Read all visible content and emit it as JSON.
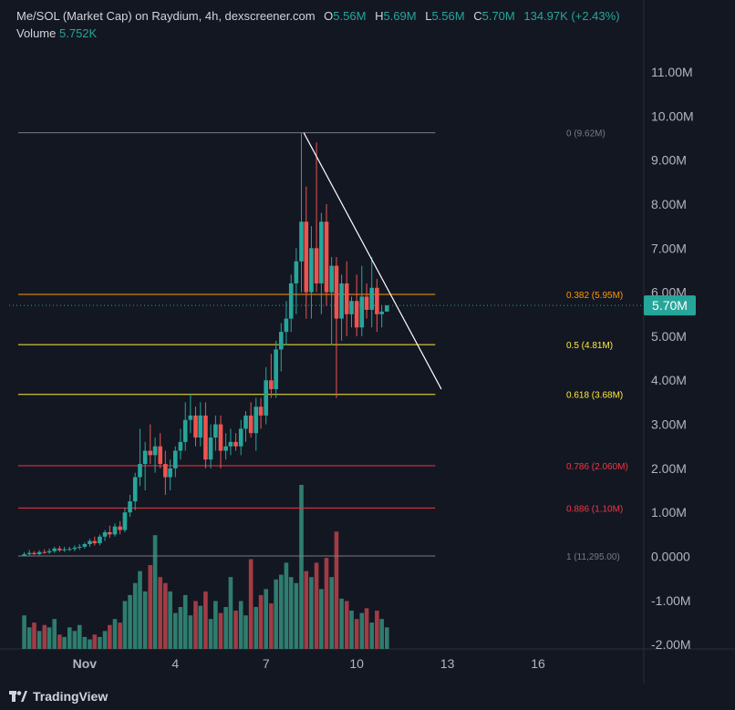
{
  "header": {
    "title": "Me/SOL (Market Cap) on Raydium, 4h, dexscreener.com",
    "o_label": "O",
    "o_value": "5.56M",
    "h_label": "H",
    "h_value": "5.69M",
    "l_label": "L",
    "l_value": "5.56M",
    "c_label": "C",
    "c_value": "5.70M",
    "change": "134.97K (+2.43%)"
  },
  "volume": {
    "label": "Volume",
    "value": "5.752K"
  },
  "price_badge": "5.70M",
  "branding": "TradingView",
  "colors": {
    "up": "#26a69a",
    "down": "#ef5350",
    "up_volume": "#2e7d6e",
    "down_volume": "#a33b45",
    "background": "#131722",
    "fib_0": "#787b86",
    "fib_0382": "#ff9800",
    "fib_05": "#ffeb3b",
    "fib_0618": "#ffeb3b",
    "fib_0786": "#f23645",
    "fib_0886": "#f23645",
    "fib_1": "#787b86",
    "trendline": "#ffffff"
  },
  "chart_data": {
    "type": "candlestick",
    "y_axis_ticks": [
      "11.00M",
      "10.00M",
      "9.00M",
      "8.00M",
      "7.00M",
      "6.00M",
      "5.00M",
      "4.00M",
      "3.00M",
      "2.00M",
      "1.00M",
      "0.0000",
      "-1.00M",
      "-2.00M"
    ],
    "ylim": [
      -2.1,
      11.6
    ],
    "x_axis_ticks": [
      {
        "label": "Nov",
        "x": 1
      },
      {
        "label": "4",
        "x": 4
      },
      {
        "label": "7",
        "x": 7
      },
      {
        "label": "10",
        "x": 10
      },
      {
        "label": "13",
        "x": 13
      },
      {
        "label": "16",
        "x": 16
      }
    ],
    "xlim": [
      -1.5,
      19.5
    ],
    "last_price": 5.7,
    "fib_levels": [
      {
        "level": "0",
        "label": "0 (9.62M)",
        "value": 9.62
      },
      {
        "level": "0.382",
        "label": "0.382 (5.95M)",
        "value": 5.95
      },
      {
        "level": "0.5",
        "label": "0.5 (4.81M)",
        "value": 4.81
      },
      {
        "level": "0.618",
        "label": "0.618 (3.68M)",
        "value": 3.68
      },
      {
        "level": "0.786",
        "label": "0.786 (2.060M)",
        "value": 2.06
      },
      {
        "level": "0.886",
        "label": "0.886 (1.10M)",
        "value": 1.1
      },
      {
        "level": "1",
        "label": "1 (11,295.00)",
        "value": 0.011
      }
    ],
    "fib_x_range": [
      -1.2,
      12.6
    ],
    "trendline": {
      "x1": 8.25,
      "y1": 9.62,
      "x2": 12.8,
      "y2": 3.8
    },
    "volume_scale_max": 1.37,
    "candles": [
      {
        "x": -1.0,
        "o": 0.02,
        "h": 0.1,
        "l": 0.01,
        "c": 0.05
      },
      {
        "x": -0.83,
        "o": 0.05,
        "h": 0.15,
        "l": 0.02,
        "c": 0.08
      },
      {
        "x": -0.67,
        "o": 0.08,
        "h": 0.12,
        "l": 0.04,
        "c": 0.05
      },
      {
        "x": -0.5,
        "o": 0.05,
        "h": 0.14,
        "l": 0.03,
        "c": 0.1
      },
      {
        "x": -0.33,
        "o": 0.1,
        "h": 0.16,
        "l": 0.06,
        "c": 0.09
      },
      {
        "x": -0.17,
        "o": 0.09,
        "h": 0.18,
        "l": 0.06,
        "c": 0.12
      },
      {
        "x": 0.0,
        "o": 0.12,
        "h": 0.22,
        "l": 0.08,
        "c": 0.18
      },
      {
        "x": 0.17,
        "o": 0.18,
        "h": 0.24,
        "l": 0.1,
        "c": 0.14
      },
      {
        "x": 0.33,
        "o": 0.14,
        "h": 0.22,
        "l": 0.1,
        "c": 0.16
      },
      {
        "x": 0.5,
        "o": 0.16,
        "h": 0.22,
        "l": 0.12,
        "c": 0.17
      },
      {
        "x": 0.67,
        "o": 0.17,
        "h": 0.25,
        "l": 0.12,
        "c": 0.2
      },
      {
        "x": 0.83,
        "o": 0.2,
        "h": 0.28,
        "l": 0.15,
        "c": 0.22
      },
      {
        "x": 1.0,
        "o": 0.22,
        "h": 0.32,
        "l": 0.18,
        "c": 0.28
      },
      {
        "x": 1.17,
        "o": 0.28,
        "h": 0.4,
        "l": 0.22,
        "c": 0.35
      },
      {
        "x": 1.33,
        "o": 0.35,
        "h": 0.45,
        "l": 0.25,
        "c": 0.3
      },
      {
        "x": 1.5,
        "o": 0.3,
        "h": 0.5,
        "l": 0.25,
        "c": 0.45
      },
      {
        "x": 1.67,
        "o": 0.45,
        "h": 0.6,
        "l": 0.35,
        "c": 0.55
      },
      {
        "x": 1.83,
        "o": 0.55,
        "h": 0.7,
        "l": 0.42,
        "c": 0.5
      },
      {
        "x": 2.0,
        "o": 0.5,
        "h": 0.75,
        "l": 0.45,
        "c": 0.68
      },
      {
        "x": 2.17,
        "o": 0.68,
        "h": 0.8,
        "l": 0.5,
        "c": 0.6
      },
      {
        "x": 2.33,
        "o": 0.6,
        "h": 1.1,
        "l": 0.55,
        "c": 1.0
      },
      {
        "x": 2.5,
        "o": 1.0,
        "h": 1.4,
        "l": 0.9,
        "c": 1.25
      },
      {
        "x": 2.67,
        "o": 1.25,
        "h": 1.9,
        "l": 1.05,
        "c": 1.8
      },
      {
        "x": 2.83,
        "o": 1.8,
        "h": 2.9,
        "l": 1.6,
        "c": 2.1
      },
      {
        "x": 3.0,
        "o": 2.1,
        "h": 2.6,
        "l": 1.5,
        "c": 2.4
      },
      {
        "x": 3.17,
        "o": 2.4,
        "h": 3.0,
        "l": 2.1,
        "c": 2.3
      },
      {
        "x": 3.33,
        "o": 2.3,
        "h": 2.7,
        "l": 1.9,
        "c": 2.5
      },
      {
        "x": 3.5,
        "o": 2.5,
        "h": 2.8,
        "l": 2.0,
        "c": 2.1
      },
      {
        "x": 3.67,
        "o": 2.1,
        "h": 2.4,
        "l": 1.4,
        "c": 1.8
      },
      {
        "x": 3.83,
        "o": 1.8,
        "h": 2.2,
        "l": 1.5,
        "c": 2.0
      },
      {
        "x": 4.0,
        "o": 2.0,
        "h": 2.5,
        "l": 1.8,
        "c": 2.4
      },
      {
        "x": 4.17,
        "o": 2.4,
        "h": 2.9,
        "l": 2.2,
        "c": 2.6
      },
      {
        "x": 4.33,
        "o": 2.6,
        "h": 3.5,
        "l": 2.4,
        "c": 3.1
      },
      {
        "x": 4.5,
        "o": 3.1,
        "h": 3.7,
        "l": 2.8,
        "c": 3.2
      },
      {
        "x": 4.67,
        "o": 3.2,
        "h": 3.4,
        "l": 2.5,
        "c": 2.7
      },
      {
        "x": 4.83,
        "o": 2.7,
        "h": 3.5,
        "l": 2.5,
        "c": 3.2
      },
      {
        "x": 5.0,
        "o": 3.2,
        "h": 3.5,
        "l": 2.0,
        "c": 2.2
      },
      {
        "x": 5.17,
        "o": 2.2,
        "h": 3.0,
        "l": 2.0,
        "c": 2.7
      },
      {
        "x": 5.33,
        "o": 2.7,
        "h": 3.2,
        "l": 2.4,
        "c": 3.0
      },
      {
        "x": 5.5,
        "o": 3.0,
        "h": 3.2,
        "l": 2.0,
        "c": 2.4
      },
      {
        "x": 5.67,
        "o": 2.4,
        "h": 2.8,
        "l": 2.2,
        "c": 2.5
      },
      {
        "x": 5.83,
        "o": 2.5,
        "h": 2.9,
        "l": 2.3,
        "c": 2.6
      },
      {
        "x": 6.0,
        "o": 2.6,
        "h": 2.8,
        "l": 2.4,
        "c": 2.5
      },
      {
        "x": 6.17,
        "o": 2.5,
        "h": 3.1,
        "l": 2.3,
        "c": 2.9
      },
      {
        "x": 6.33,
        "o": 2.9,
        "h": 3.3,
        "l": 2.6,
        "c": 3.2
      },
      {
        "x": 6.5,
        "o": 3.2,
        "h": 3.5,
        "l": 2.7,
        "c": 2.8
      },
      {
        "x": 6.67,
        "o": 2.8,
        "h": 3.6,
        "l": 2.4,
        "c": 3.4
      },
      {
        "x": 6.83,
        "o": 3.4,
        "h": 3.6,
        "l": 2.9,
        "c": 3.2
      },
      {
        "x": 7.0,
        "o": 3.2,
        "h": 4.3,
        "l": 3.0,
        "c": 4.0
      },
      {
        "x": 7.17,
        "o": 4.0,
        "h": 4.6,
        "l": 3.6,
        "c": 3.8
      },
      {
        "x": 7.33,
        "o": 3.8,
        "h": 4.9,
        "l": 3.6,
        "c": 4.7
      },
      {
        "x": 7.5,
        "o": 4.7,
        "h": 5.3,
        "l": 4.2,
        "c": 5.1
      },
      {
        "x": 7.67,
        "o": 5.1,
        "h": 5.8,
        "l": 4.8,
        "c": 5.4
      },
      {
        "x": 7.83,
        "o": 5.4,
        "h": 6.4,
        "l": 5.1,
        "c": 6.2
      },
      {
        "x": 8.0,
        "o": 6.2,
        "h": 7.0,
        "l": 5.5,
        "c": 6.7
      },
      {
        "x": 8.17,
        "o": 6.7,
        "h": 9.62,
        "l": 6.0,
        "c": 7.6
      },
      {
        "x": 8.33,
        "o": 7.6,
        "h": 8.4,
        "l": 5.4,
        "c": 6.0
      },
      {
        "x": 8.5,
        "o": 6.0,
        "h": 7.5,
        "l": 5.4,
        "c": 7.0
      },
      {
        "x": 8.67,
        "o": 7.0,
        "h": 9.4,
        "l": 6.0,
        "c": 6.2
      },
      {
        "x": 8.83,
        "o": 6.2,
        "h": 7.8,
        "l": 5.5,
        "c": 7.6
      },
      {
        "x": 9.0,
        "o": 7.6,
        "h": 8.0,
        "l": 5.7,
        "c": 6.0
      },
      {
        "x": 9.17,
        "o": 6.0,
        "h": 6.8,
        "l": 4.8,
        "c": 6.6
      },
      {
        "x": 9.33,
        "o": 6.6,
        "h": 6.8,
        "l": 3.6,
        "c": 5.4
      },
      {
        "x": 9.5,
        "o": 5.4,
        "h": 6.4,
        "l": 4.9,
        "c": 6.2
      },
      {
        "x": 9.67,
        "o": 6.2,
        "h": 6.7,
        "l": 5.0,
        "c": 5.5
      },
      {
        "x": 9.83,
        "o": 5.5,
        "h": 5.9,
        "l": 5.2,
        "c": 5.8
      },
      {
        "x": 10.0,
        "o": 5.8,
        "h": 6.4,
        "l": 5.0,
        "c": 5.2
      },
      {
        "x": 10.17,
        "o": 5.2,
        "h": 6.6,
        "l": 5.0,
        "c": 5.9
      },
      {
        "x": 10.33,
        "o": 5.9,
        "h": 6.2,
        "l": 5.4,
        "c": 5.6
      },
      {
        "x": 10.5,
        "o": 5.6,
        "h": 6.8,
        "l": 5.2,
        "c": 6.1
      },
      {
        "x": 10.67,
        "o": 6.1,
        "h": 6.3,
        "l": 5.1,
        "c": 5.5
      },
      {
        "x": 10.83,
        "o": 5.5,
        "h": 5.7,
        "l": 5.2,
        "c": 5.56
      },
      {
        "x": 11.0,
        "o": 5.56,
        "h": 5.69,
        "l": 5.56,
        "c": 5.7
      }
    ],
    "volumes": [
      0.28,
      0.18,
      0.22,
      0.15,
      0.2,
      0.18,
      0.25,
      0.12,
      0.1,
      0.18,
      0.15,
      0.2,
      0.1,
      0.08,
      0.12,
      0.1,
      0.15,
      0.2,
      0.25,
      0.22,
      0.4,
      0.45,
      0.55,
      0.65,
      0.48,
      0.7,
      0.95,
      0.6,
      0.55,
      0.48,
      0.3,
      0.35,
      0.45,
      0.28,
      0.4,
      0.36,
      0.48,
      0.25,
      0.4,
      0.3,
      0.35,
      0.6,
      0.32,
      0.4,
      0.28,
      0.75,
      0.35,
      0.45,
      0.5,
      0.38,
      0.58,
      0.62,
      0.72,
      0.6,
      0.55,
      1.37,
      0.65,
      0.6,
      0.72,
      0.5,
      0.76,
      0.6,
      0.98,
      0.42,
      0.4,
      0.32,
      0.25,
      0.3,
      0.34,
      0.22,
      0.32,
      0.25,
      0.18
    ]
  }
}
